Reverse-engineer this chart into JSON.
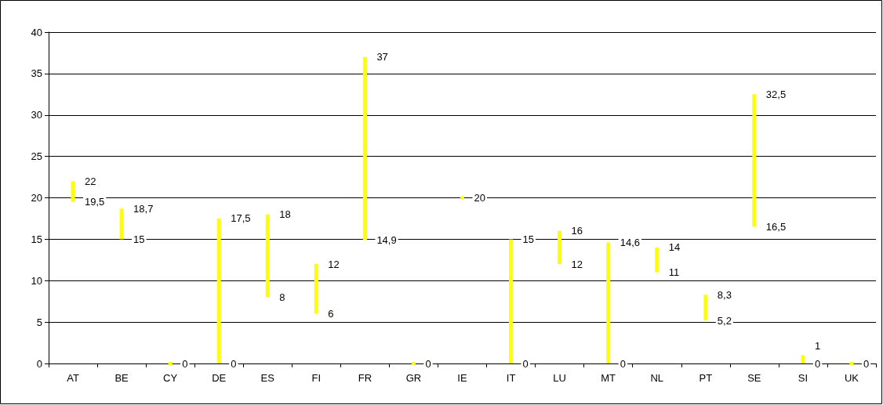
{
  "chart_data": {
    "type": "bar",
    "categories": [
      "AT",
      "BE",
      "CY",
      "DE",
      "ES",
      "FI",
      "FR",
      "GR",
      "IE",
      "IT",
      "LU",
      "MT",
      "NL",
      "PT",
      "SE",
      "SI",
      "UK"
    ],
    "base": [
      19.5,
      15,
      0,
      0,
      8,
      6,
      14.9,
      0,
      20,
      0,
      12,
      0,
      11,
      5.2,
      16.5,
      0,
      0
    ],
    "values": [
      2.5,
      3.7,
      0,
      17.5,
      10,
      6,
      22.1,
      0,
      0,
      15,
      4,
      14.6,
      3,
      3.1,
      16,
      1,
      0
    ],
    "color": "#ffff00",
    "ylim": [
      0,
      40
    ],
    "yticks": [
      0,
      5,
      10,
      15,
      20,
      25,
      30,
      35,
      40
    ],
    "grid": "y",
    "annotations": [
      {
        "text": "22",
        "x": "AT",
        "y": 22
      },
      {
        "text": "19,5",
        "x": "AT",
        "y": 19.5
      },
      {
        "text": "18,7",
        "x": "BE",
        "y": 18.7
      },
      {
        "text": "15",
        "x": "BE",
        "y": 15
      },
      {
        "text": "0",
        "x": "CY",
        "y": 0
      },
      {
        "text": "17,5",
        "x": "DE",
        "y": 17.5
      },
      {
        "text": "0",
        "x": "DE",
        "y": 0
      },
      {
        "text": "18",
        "x": "ES",
        "y": 18
      },
      {
        "text": "8",
        "x": "ES",
        "y": 8
      },
      {
        "text": "12",
        "x": "FI",
        "y": 12
      },
      {
        "text": "6",
        "x": "FI",
        "y": 6
      },
      {
        "text": "37",
        "x": "FR",
        "y": 37
      },
      {
        "text": "14,9",
        "x": "FR",
        "y": 14.9
      },
      {
        "text": "0",
        "x": "GR",
        "y": 0
      },
      {
        "text": "20",
        "x": "IE",
        "y": 20
      },
      {
        "text": "15",
        "x": "IT",
        "y": 15
      },
      {
        "text": "0",
        "x": "IT",
        "y": 0
      },
      {
        "text": "16",
        "x": "LU",
        "y": 16
      },
      {
        "text": "12",
        "x": "LU",
        "y": 12
      },
      {
        "text": "14,6",
        "x": "MT",
        "y": 14.6
      },
      {
        "text": "0",
        "x": "MT",
        "y": 0
      },
      {
        "text": "14",
        "x": "NL",
        "y": 14
      },
      {
        "text": "11",
        "x": "NL",
        "y": 11
      },
      {
        "text": "8,3",
        "x": "PT",
        "y": 8.3
      },
      {
        "text": "5,2",
        "x": "PT",
        "y": 5.2
      },
      {
        "text": "32,5",
        "x": "SE",
        "y": 32.5
      },
      {
        "text": "16,5",
        "x": "SE",
        "y": 16.5
      },
      {
        "text": "1",
        "x": "SI",
        "y": 1
      },
      {
        "text": "0",
        "x": "SI",
        "y": 0
      },
      {
        "text": "0",
        "x": "UK",
        "y": 0
      }
    ]
  }
}
